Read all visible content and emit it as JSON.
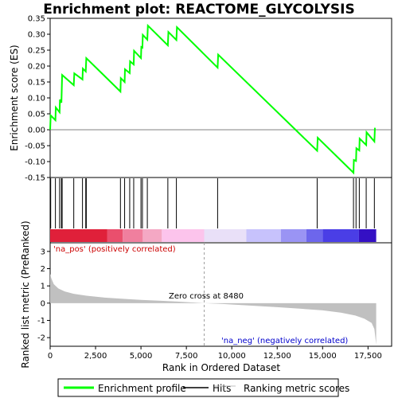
{
  "chart_data": {
    "type": "line",
    "title": "Enrichment plot: REACTOME_GLYCOLYSIS",
    "top_panel": {
      "ylabel": "Enrichment score (ES)",
      "ylim": [
        -0.15,
        0.35
      ],
      "yticks": [
        "-0.15",
        "-0.10",
        "-0.05",
        "0.00",
        "0.05",
        "0.10",
        "0.15",
        "0.20",
        "0.25",
        "0.30",
        "0.35"
      ],
      "ytick_values": [
        -0.15,
        -0.1,
        -0.05,
        0.0,
        0.05,
        0.1,
        0.15,
        0.2,
        0.25,
        0.3,
        0.35
      ],
      "series": [
        {
          "name": "Enrichment profile",
          "color": "#00ff00",
          "points": [
            [
              0,
              0.0
            ],
            [
              30,
              0.045
            ],
            [
              290,
              0.03
            ],
            [
              310,
              0.07
            ],
            [
              520,
              0.055
            ],
            [
              540,
              0.095
            ],
            [
              620,
              0.085
            ],
            [
              660,
              0.172
            ],
            [
              1300,
              0.14
            ],
            [
              1330,
              0.177
            ],
            [
              1780,
              0.158
            ],
            [
              1800,
              0.192
            ],
            [
              1960,
              0.183
            ],
            [
              1990,
              0.225
            ],
            [
              3870,
              0.12
            ],
            [
              3890,
              0.162
            ],
            [
              4100,
              0.15
            ],
            [
              4120,
              0.19
            ],
            [
              4380,
              0.178
            ],
            [
              4400,
              0.215
            ],
            [
              4600,
              0.205
            ],
            [
              4620,
              0.248
            ],
            [
              5000,
              0.225
            ],
            [
              5020,
              0.26
            ],
            [
              5080,
              0.258
            ],
            [
              5100,
              0.298
            ],
            [
              5350,
              0.283
            ],
            [
              5380,
              0.327
            ],
            [
              6480,
              0.265
            ],
            [
              6510,
              0.307
            ],
            [
              6950,
              0.282
            ],
            [
              6980,
              0.322
            ],
            [
              9220,
              0.195
            ],
            [
              9250,
              0.236
            ],
            [
              14700,
              -0.066
            ],
            [
              14730,
              -0.025
            ],
            [
              16700,
              -0.135
            ],
            [
              16720,
              -0.095
            ],
            [
              16840,
              -0.098
            ],
            [
              16860,
              -0.058
            ],
            [
              17020,
              -0.065
            ],
            [
              17040,
              -0.028
            ],
            [
              17400,
              -0.048
            ],
            [
              17420,
              -0.008
            ],
            [
              17850,
              -0.037
            ],
            [
              17880,
              0.006
            ]
          ]
        }
      ]
    },
    "hits": [
      30,
      290,
      520,
      620,
      660,
      1300,
      1780,
      1960,
      1990,
      3870,
      4100,
      4380,
      4600,
      5000,
      5080,
      5350,
      6480,
      6950,
      9220,
      14700,
      16700,
      16840,
      17020,
      17400,
      17850
    ],
    "color_bar": {
      "colors": [
        "#e0203a",
        "#ea4f6d",
        "#f07f9e",
        "#f4a8c4",
        "#fcc4ec",
        "#e9e0f8",
        "#c7c2fc",
        "#9a94f4",
        "#6d66ec",
        "#4a3ee6",
        "#3410c4"
      ],
      "bounds": [
        0,
        3150,
        4000,
        5100,
        6150,
        8480,
        10800,
        12700,
        14100,
        15000,
        17000,
        17950
      ]
    },
    "bottom_panel": {
      "ylabel": "Ranked list metric (PreRanked)",
      "ylim": [
        -2.5,
        3.5
      ],
      "yticks": [
        "-2",
        "-1",
        "0",
        "1",
        "2",
        "3"
      ],
      "ytick_values": [
        -2,
        -1,
        0,
        1,
        2,
        3
      ],
      "series_name": "Ranking metric scores",
      "metric_points": [
        [
          0,
          1.7
        ],
        [
          60,
          1.45
        ],
        [
          200,
          1.1
        ],
        [
          450,
          0.85
        ],
        [
          800,
          0.68
        ],
        [
          1300,
          0.54
        ],
        [
          2000,
          0.43
        ],
        [
          3000,
          0.32
        ],
        [
          4000,
          0.25
        ],
        [
          5000,
          0.19
        ],
        [
          6000,
          0.14
        ],
        [
          7000,
          0.09
        ],
        [
          8480,
          0.0
        ],
        [
          9500,
          -0.05
        ],
        [
          11000,
          -0.14
        ],
        [
          12500,
          -0.23
        ],
        [
          14000,
          -0.34
        ],
        [
          15000,
          -0.42
        ],
        [
          16000,
          -0.55
        ],
        [
          16800,
          -0.72
        ],
        [
          17300,
          -0.9
        ],
        [
          17700,
          -1.15
        ],
        [
          17850,
          -1.5
        ],
        [
          17950,
          -2.4
        ]
      ]
    },
    "xlabel": "Rank in Ordered Dataset",
    "xlim": [
      0,
      18800
    ],
    "n_genes": 17950,
    "xticks": [
      "0",
      "2,500",
      "5,000",
      "7,500",
      "10,000",
      "12,500",
      "15,000",
      "17,500"
    ],
    "xtick_values": [
      0,
      2500,
      5000,
      7500,
      10000,
      12500,
      15000,
      17500
    ],
    "zero_cross": 8480,
    "annotations": {
      "pos": "'na_pos' (positively correlated)",
      "neg": "'na_neg' (negatively correlated)",
      "zero": "Zero cross at 8480"
    },
    "legend": {
      "position": "bottom",
      "entries": [
        {
          "label": "Enrichment profile",
          "color": "#00ff00"
        },
        {
          "label": "Hits",
          "color": "#000000"
        },
        {
          "label": "Ranking metric scores",
          "color": "#c0c0c0"
        }
      ]
    },
    "colors": {
      "pos_text": "#cc0000",
      "neg_text": "#0000cc",
      "metric_fill": "#c0c0c0",
      "zero_line": "#a0a0a0"
    }
  }
}
